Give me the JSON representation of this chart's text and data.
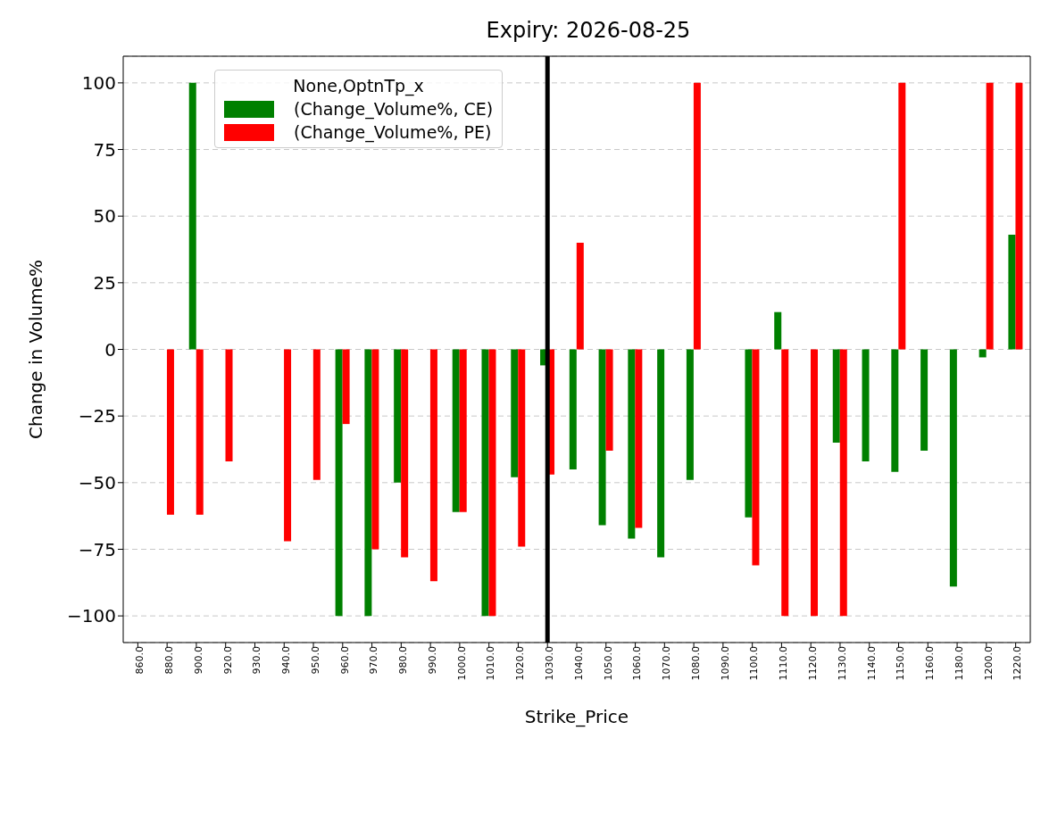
{
  "chart_data": {
    "type": "bar",
    "title": "Expiry: 2026-08-25",
    "xlabel": "Strike_Price",
    "ylabel": "Change in Volume%",
    "legend_title": "None,OptnTp_x",
    "categories": [
      "860.0",
      "880.0",
      "900.0",
      "920.0",
      "930.0",
      "940.0",
      "950.0",
      "960.0",
      "970.0",
      "980.0",
      "990.0",
      "1000.0",
      "1010.0",
      "1020.0",
      "1030.0",
      "1040.0",
      "1050.0",
      "1060.0",
      "1070.0",
      "1080.0",
      "1090.0",
      "1100.0",
      "1110.0",
      "1120.0",
      "1130.0",
      "1140.0",
      "1150.0",
      "1160.0",
      "1180.0",
      "1200.0",
      "1220.0"
    ],
    "series": [
      {
        "name": "(Change_Volume%, CE)",
        "color": "#008000",
        "values": [
          null,
          null,
          100,
          null,
          null,
          null,
          null,
          -100,
          -100,
          -50,
          null,
          -61,
          -100,
          -48,
          -6,
          -45,
          -66,
          -71,
          -78,
          -49,
          null,
          -63,
          14,
          null,
          -35,
          -42,
          -46,
          -38,
          -89,
          -3,
          43
        ]
      },
      {
        "name": "(Change_Volume%, PE)",
        "color": "#ff0000",
        "values": [
          null,
          -62,
          -62,
          -42,
          null,
          -72,
          -49,
          -28,
          -75,
          -78,
          -87,
          -61,
          -100,
          -74,
          -47,
          40,
          -38,
          -67,
          null,
          100,
          null,
          -81,
          -100,
          -100,
          -100,
          null,
          100,
          null,
          null,
          100,
          100
        ]
      }
    ],
    "ylim": [
      -110,
      110
    ],
    "yticks": [
      -100,
      -75,
      -50,
      -25,
      0,
      25,
      50,
      75,
      100
    ],
    "grid": "y",
    "legend": "top left",
    "ref_lines": [
      {
        "axis": "x",
        "value": "1030.0",
        "color": "#000000"
      }
    ]
  }
}
